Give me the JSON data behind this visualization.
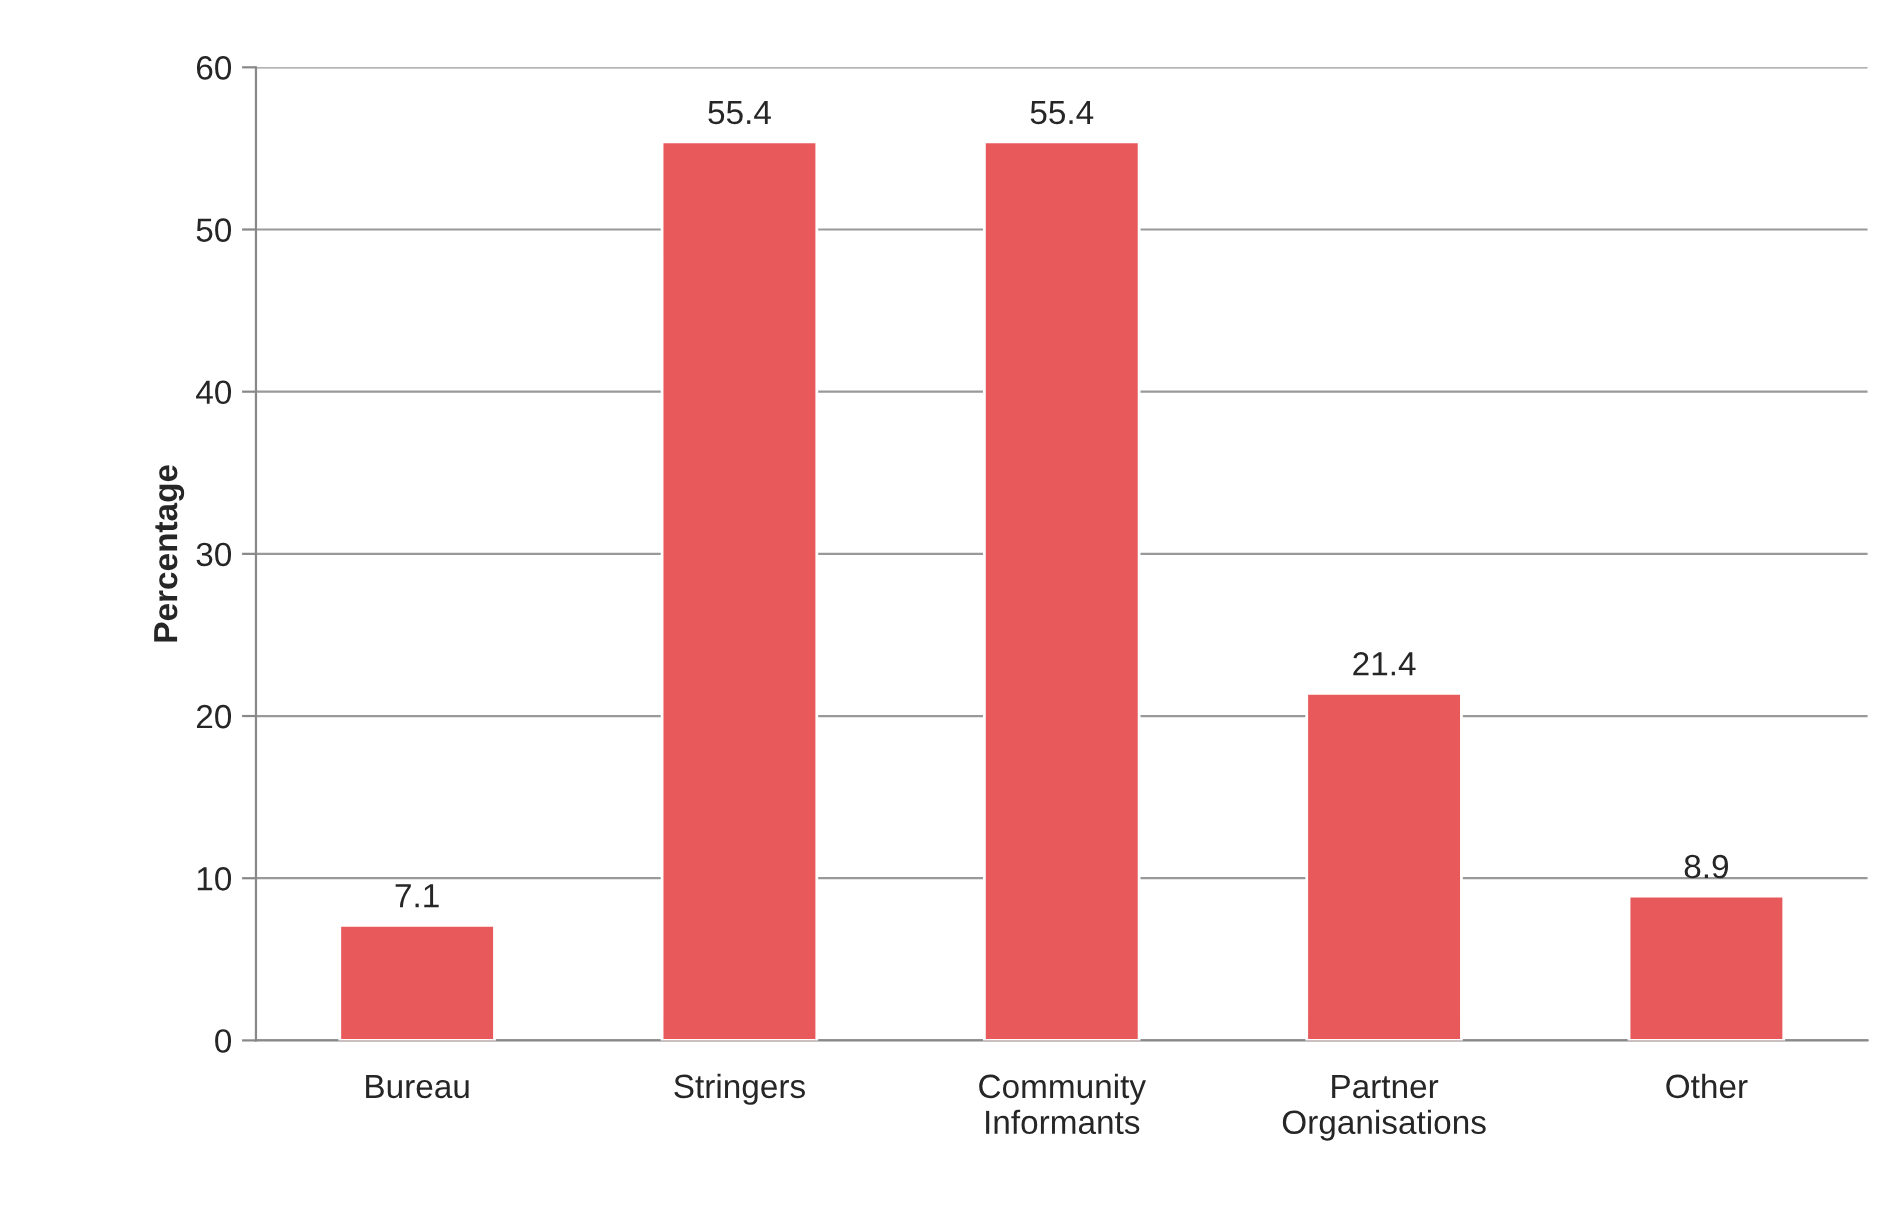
{
  "chart_data": {
    "type": "bar",
    "ylabel": "Percentage",
    "categories": [
      "Bureau",
      "Stringers",
      "Community\nInformants",
      "Partner\nOrganisations",
      "Other"
    ],
    "values": [
      7.1,
      55.4,
      55.4,
      21.4,
      8.9
    ],
    "color": "#e8595b",
    "ylim": [
      0,
      60
    ],
    "yticks": [
      0,
      10,
      20,
      30,
      40,
      50,
      60
    ],
    "grid": "y",
    "data_labels": true
  }
}
